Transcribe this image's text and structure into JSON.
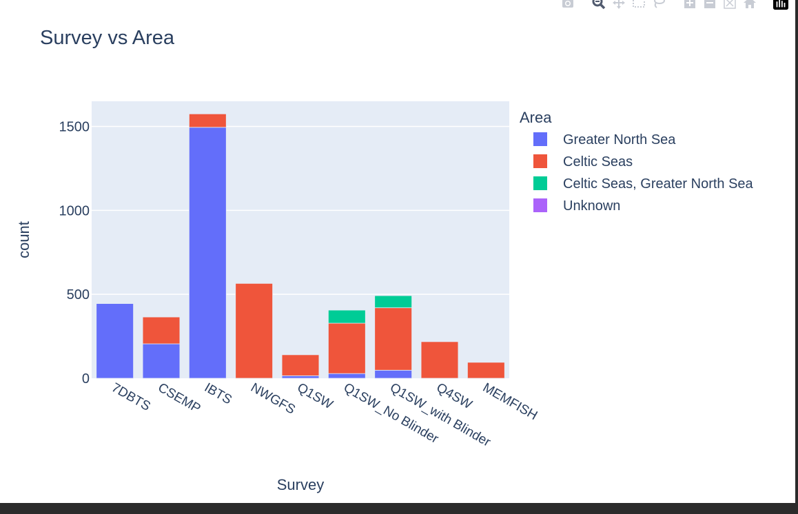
{
  "modebar": {
    "buttons": [
      {
        "icon": "camera-icon",
        "name": "download-plot-button"
      },
      {
        "icon": "zoom-icon",
        "name": "zoom-button"
      },
      {
        "icon": "pan-icon",
        "name": "pan-button"
      },
      {
        "icon": "box-select-icon",
        "name": "box-select-button"
      },
      {
        "icon": "lasso-select-icon",
        "name": "lasso-select-button"
      },
      {
        "icon": "zoom-in-icon",
        "name": "zoom-in-button"
      },
      {
        "icon": "zoom-out-icon",
        "name": "zoom-out-button"
      },
      {
        "icon": "autoscale-icon",
        "name": "autoscale-button"
      },
      {
        "icon": "home-icon",
        "name": "reset-axes-button"
      },
      {
        "icon": "plotly-logo-icon",
        "name": "plotly-logo"
      }
    ]
  },
  "chart_data": {
    "type": "bar",
    "barmode": "stack",
    "title": "Survey vs Area",
    "xlabel": "Survey",
    "ylabel": "count",
    "categories": [
      "7DBTS",
      "CSEMP",
      "IBTS",
      "NWGFS",
      "Q1SW",
      "Q1SW_No Blinder",
      "Q1SW_with Blinder",
      "Q4SW",
      "MEMFISH"
    ],
    "ylim": [
      0,
      1650
    ],
    "yticks": [
      0,
      500,
      1000,
      1500
    ],
    "ytick_labels": [
      "0",
      "500",
      "1000",
      "1500"
    ],
    "grid": true,
    "legend_title": "Area",
    "legend_position": "right",
    "series": [
      {
        "name": "Greater North Sea",
        "color": "#636efa",
        "values": [
          445,
          205,
          1495,
          0,
          15,
          28,
          48,
          0,
          0
        ]
      },
      {
        "name": "Celtic Seas",
        "color": "#ef553b",
        "values": [
          0,
          160,
          80,
          565,
          125,
          300,
          372,
          218,
          95
        ]
      },
      {
        "name": "Celtic Seas, Greater North Sea",
        "color": "#00cc96",
        "values": [
          0,
          0,
          0,
          0,
          0,
          78,
          72,
          0,
          0
        ]
      },
      {
        "name": "Unknown",
        "color": "#ab63fa",
        "values": [
          0,
          0,
          0,
          0,
          0,
          0,
          0,
          0,
          0
        ]
      }
    ]
  }
}
